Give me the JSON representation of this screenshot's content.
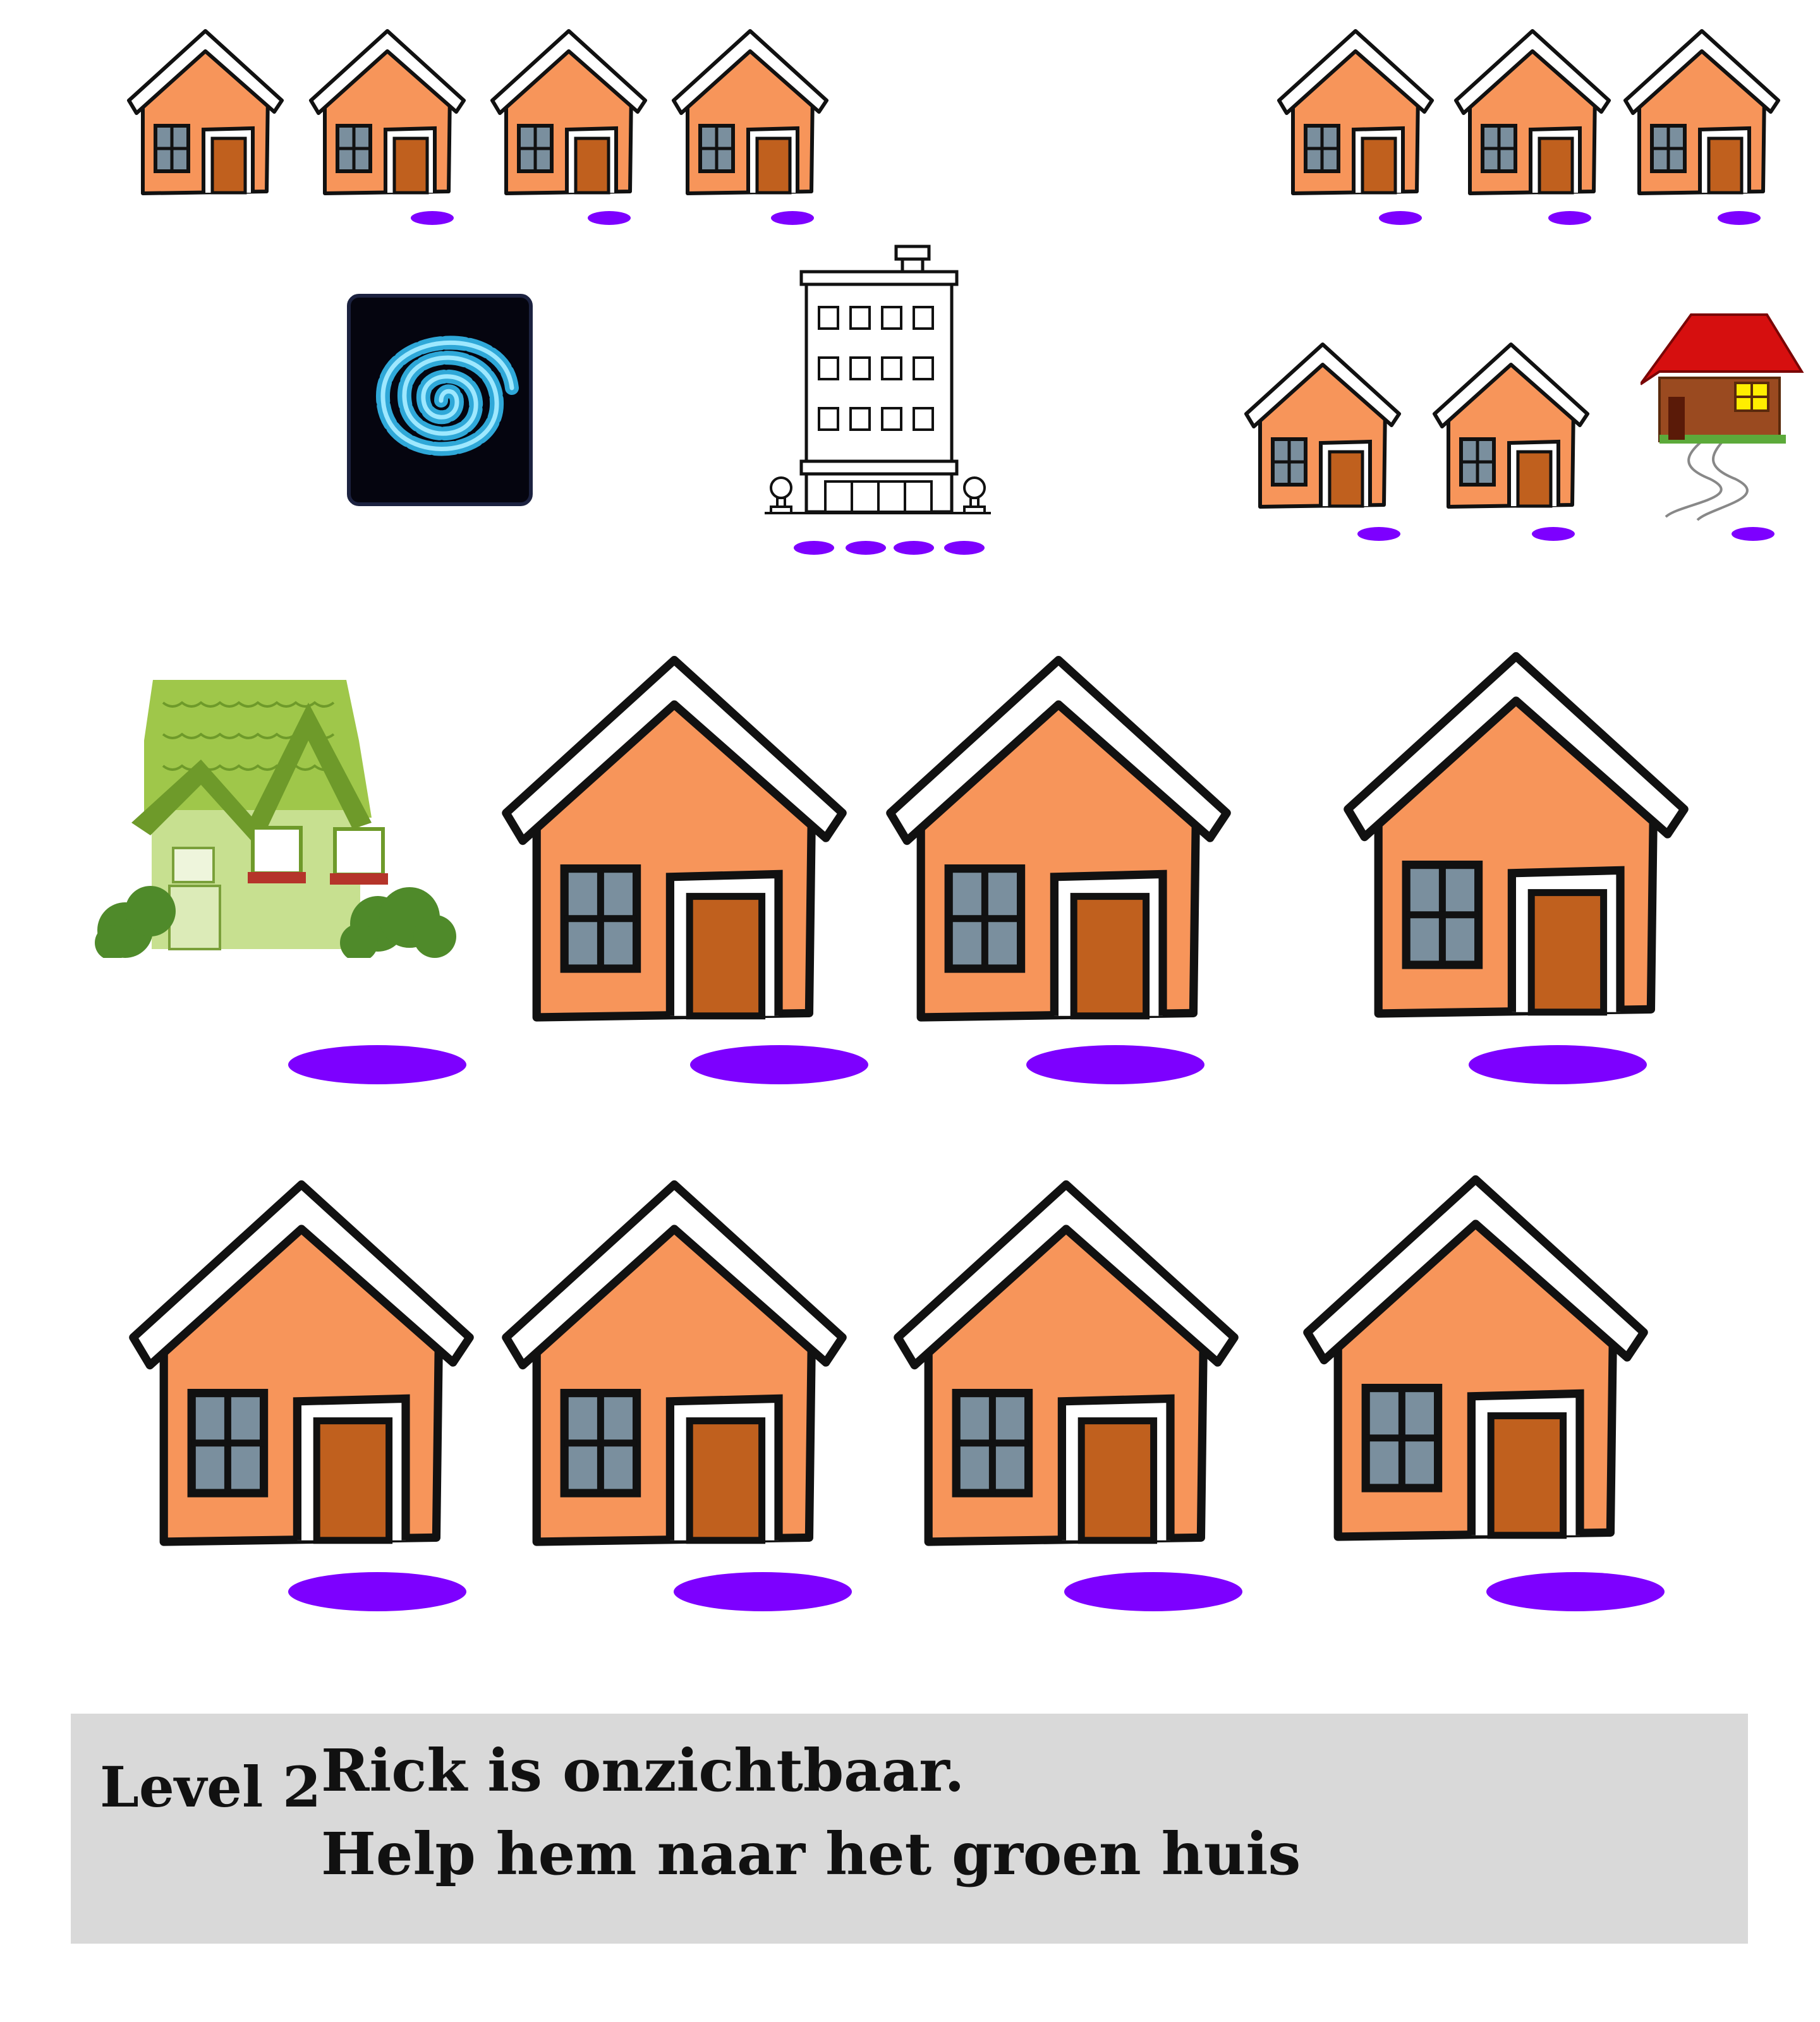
{
  "game": {
    "level_label": "Level 2",
    "instruction_line1": "Rick is onzichtbaar.",
    "instruction_line2": "Help hem naar het groen huis"
  },
  "colors": {
    "house_wall": "#f7955a",
    "house_roof_snow": "#ffffff",
    "house_door": "#c0601e",
    "house_window": "#7a8f9e",
    "spot": "#7d00ff",
    "panel": "#d9d9d9",
    "green_house": "#a9c957",
    "red_roof": "#d60f0f"
  },
  "icons": {
    "portal": "swirl-portal-icon",
    "building": "apartment-building-icon",
    "target": "green-house-icon",
    "cabin": "red-roof-cabin-icon"
  }
}
